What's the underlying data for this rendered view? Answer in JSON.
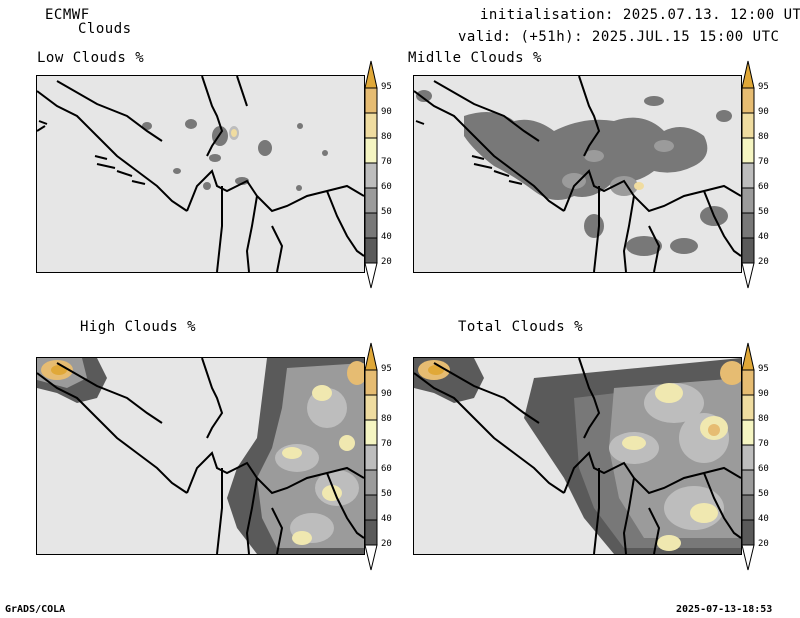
{
  "header": {
    "model": "ECMWF",
    "subtitle": "Clouds",
    "initialisation": "initialisation: 2025.07.13. 12:00 UTC",
    "valid": "valid: (+51h): 2025.JUL.15 15:00 UTC"
  },
  "panels": [
    {
      "title": "Low Clouds %"
    },
    {
      "title": "Midlle Clouds %"
    },
    {
      "title": "High Clouds %"
    },
    {
      "title": "Total Clouds %"
    }
  ],
  "colorbar": {
    "levels": [
      "20",
      "40",
      "50",
      "60",
      "70",
      "80",
      "90",
      "95"
    ],
    "colors": [
      "#5a5a5a",
      "#787878",
      "#9b9b9b",
      "#bdbdbd",
      "#e6e6e6",
      "#f5f5c2",
      "#efdca0",
      "#e6bc72",
      "#e0a838"
    ]
  },
  "footer": {
    "left": "GrADS/COLA",
    "right": "2025-07-13-18:53"
  }
}
